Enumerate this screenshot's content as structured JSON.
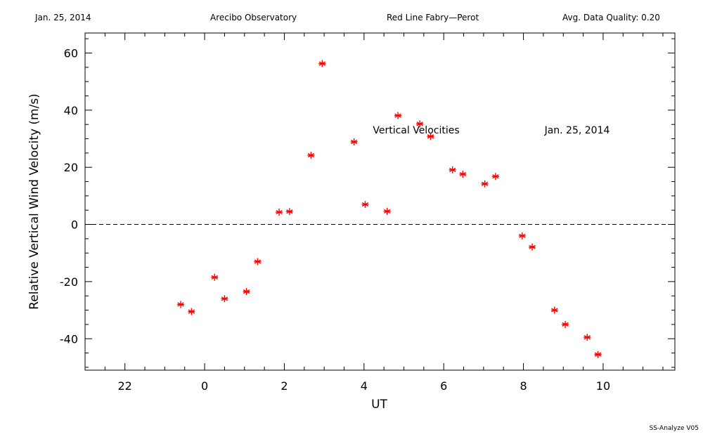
{
  "header": {
    "date": "Jan. 25, 2014",
    "site": "Arecibo Observatory",
    "instrument": "Red Line Fabry—Perot",
    "quality": "Avg. Data Quality: 0.20"
  },
  "footer": {
    "software": "SS-Analyze V05"
  },
  "chart_data": {
    "type": "scatter",
    "title": "",
    "xlabel": "UT",
    "ylabel": "Relative Vertical Wind Velocity (m/s)",
    "annotations": [
      "Vertical Velocities",
      "Jan. 25, 2014"
    ],
    "x_tick_labels": [
      "22",
      "0",
      "2",
      "4",
      "6",
      "8",
      "10"
    ],
    "y_tick_labels": [
      "-40",
      "-20",
      "0",
      "20",
      "40",
      "60"
    ],
    "xlim": [
      21.0,
      11.8
    ],
    "xlim_note_ut_wraps_at_24": true,
    "ylim": [
      -51,
      67
    ],
    "zero_line": "dashed",
    "marker": "asterisk",
    "marker_color": "#ff0000",
    "series": [
      {
        "x": [
          23.4,
          23.67,
          0.25,
          0.5,
          1.05,
          1.33,
          1.87,
          2.13,
          2.67,
          2.95,
          3.75,
          4.03,
          4.58,
          4.85,
          5.4,
          5.67,
          6.22,
          6.48,
          7.03,
          7.3,
          7.97,
          8.22,
          8.78,
          9.05,
          9.6,
          9.87
        ],
        "y": [
          -28,
          -30.5,
          -18.5,
          -26,
          -23.5,
          -13,
          4.3,
          4.5,
          24.2,
          56.3,
          28.9,
          7,
          4.6,
          38.1,
          35.2,
          30.8,
          19.1,
          17.6,
          14.2,
          16.8,
          -4,
          -7.9,
          -30,
          -35,
          -39.5,
          -45.5
        ]
      }
    ]
  }
}
